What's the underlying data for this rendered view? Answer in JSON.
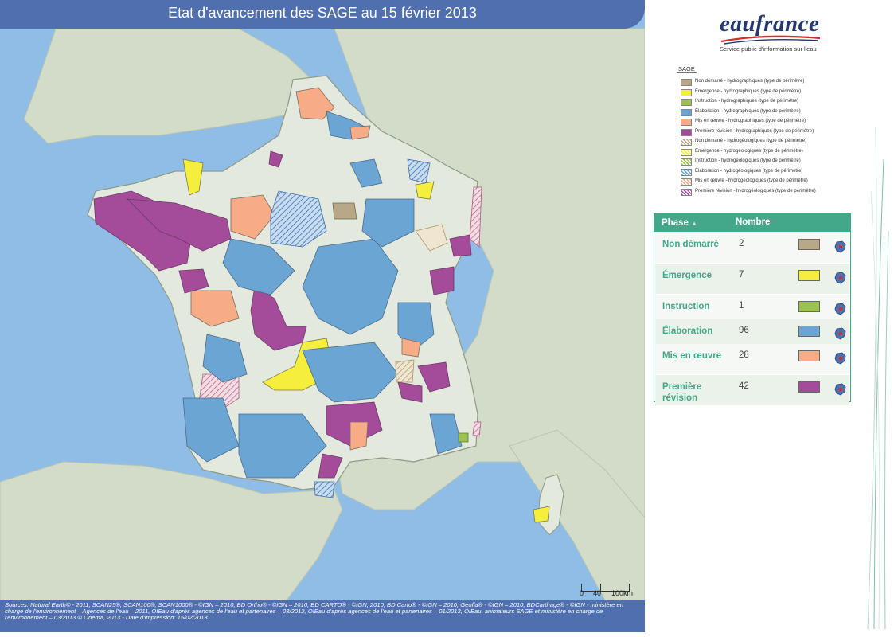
{
  "title": "Etat d'avancement des SAGE au 15 février 2013",
  "logo": {
    "name": "eaufrance",
    "tagline": "Service public d'information sur l'eau"
  },
  "legend": {
    "title": "SAGE",
    "items": [
      {
        "label": "Non démarré - hydrographiques (type de périmètre)",
        "color": "#b8a888",
        "hatched": false
      },
      {
        "label": "Émergence - hydrographiques (type de périmètre)",
        "color": "#f5ee3c",
        "hatched": false
      },
      {
        "label": "Instruction - hydrographiques (type de périmètre)",
        "color": "#9bc24e",
        "hatched": false
      },
      {
        "label": "Élaboration - hydrographiques (type de périmètre)",
        "color": "#6ba5d4",
        "hatched": false
      },
      {
        "label": "Mis en œuvre - hydrographiques (type de périmètre)",
        "color": "#f6ac84",
        "hatched": false
      },
      {
        "label": "Première révision - hydrographiques (type de périmètre)",
        "color": "#a44b9a",
        "hatched": false
      },
      {
        "label": "Non démarré - hydrogéologiques (type de périmètre)",
        "color": "#b8a888",
        "hatched": true
      },
      {
        "label": "Émergence - hydrogéologiques (type de périmètre)",
        "color": "#f5ee3c",
        "hatched": true
      },
      {
        "label": "Instruction - hydrogéologiques (type de périmètre)",
        "color": "#9bc24e",
        "hatched": true
      },
      {
        "label": "Élaboration - hydrogéologiques (type de périmètre)",
        "color": "#6ba5d4",
        "hatched": true
      },
      {
        "label": "Mis en œuvre - hydrogéologiques (type de périmètre)",
        "color": "#f6ac84",
        "hatched": true
      },
      {
        "label": "Première révision - hydrogéologiques (type de périmètre)",
        "color": "#a44b9a",
        "hatched": true
      }
    ]
  },
  "stats": {
    "headers": {
      "phase": "Phase",
      "count": "Nombre"
    },
    "rows": [
      {
        "phase": "Non démarré",
        "count": "2",
        "color": "#b8a888"
      },
      {
        "phase": "Émergence",
        "count": "7",
        "color": "#f5ee3c"
      },
      {
        "phase": "Instruction",
        "count": "1",
        "color": "#9bc24e"
      },
      {
        "phase": "Élaboration",
        "count": "96",
        "color": "#6ba5d4"
      },
      {
        "phase": "Mis en œuvre",
        "count": "28",
        "color": "#f6ac84"
      },
      {
        "phase": "Première révision",
        "count": "42",
        "color": "#a44b9a"
      }
    ]
  },
  "scale": {
    "labels": [
      "0",
      "40",
      "100km"
    ]
  },
  "sources": "Sources: Natural Earth© - 2011, SCAN25®, SCAN100®, SCAN1000® - ©IGN – 2010, BD Ortho® - ©IGN – 2010, BD CARTO® - ©IGN, 2010, BD Carto® - ©IGN – 2010, Geofla® - ©IGN – 2010, BDCarthage® - ©IGN - ministère en charge de l'environnement – Agences de l'eau – 2011, OIEau d'après agences de l'eau et partenaires – 03/2012, OIEau d'après agences de l'eau et partenaires – 01/2013, OIEau, animateurs SAGE et ministère en charge de l'environnement – 03/2013 © Onema, 2013 - Date d'impression: 15/02/2013",
  "colors": {
    "title_bar": "#4f6faf",
    "sea": "#8fbde6",
    "land": "#d9e2d0",
    "france": "#e3e9dc",
    "table_accent": "#43a789"
  }
}
